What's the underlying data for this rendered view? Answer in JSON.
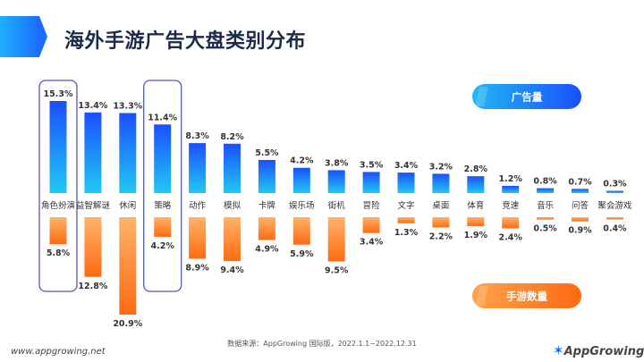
{
  "title": "海外手游广告大盘类别分布",
  "footer": {
    "website": "www.appgrowing.net",
    "source": "数据来源：AppGrowing 国际版，2022.1.1~2022.12.31",
    "logo": "AppGrowing"
  },
  "colors": {
    "ad_top": "#1a4fff",
    "ad_bottom": "#22c8f2",
    "game_top": "#ffb36b",
    "game_bottom": "#ff6a10",
    "highlight": "#5058b8",
    "text": "#333333"
  },
  "chart_data": {
    "type": "bar",
    "layout": "diverging",
    "title": "海外手游广告大盘类别分布",
    "categories": [
      "角色扮演",
      "益智解谜",
      "休闲",
      "策略",
      "动作",
      "模拟",
      "卡牌",
      "娱乐场",
      "街机",
      "冒险",
      "文字",
      "桌面",
      "体育",
      "竞速",
      "音乐",
      "问答",
      "聚会游戏"
    ],
    "series": [
      {
        "name": "广告量",
        "direction": "up",
        "values": [
          15.3,
          13.4,
          13.3,
          11.4,
          8.3,
          8.2,
          5.5,
          4.2,
          3.8,
          3.5,
          3.4,
          3.2,
          2.8,
          1.2,
          0.8,
          0.7,
          0.3
        ],
        "labels": [
          "15.3%",
          "13.4%",
          "13.3%",
          "11.4%",
          "8.3%",
          "8.2%",
          "5.5%",
          "4.2%",
          "3.8%",
          "3.5%",
          "3.4%",
          "3.2%",
          "2.8%",
          "1.2%",
          "0.8%",
          "0.7%",
          "0.3%"
        ]
      },
      {
        "name": "手游数量",
        "direction": "down",
        "values": [
          5.8,
          12.8,
          20.9,
          4.2,
          8.9,
          9.4,
          4.9,
          5.9,
          9.5,
          3.4,
          1.3,
          2.2,
          1.9,
          2.4,
          0.5,
          0.9,
          0.4
        ],
        "labels": [
          "5.8%",
          "12.8%",
          "20.9%",
          "4.2%",
          "8.9%",
          "9.4%",
          "4.9%",
          "5.9%",
          "9.5%",
          "3.4%",
          "1.3%",
          "2.2%",
          "1.9%",
          "2.4%",
          "0.5%",
          "0.9%",
          "0.4%"
        ]
      }
    ],
    "highlighted_categories": [
      "角色扮演",
      "策略"
    ],
    "legend": {
      "ad": "广告量",
      "game": "手游数量"
    }
  }
}
